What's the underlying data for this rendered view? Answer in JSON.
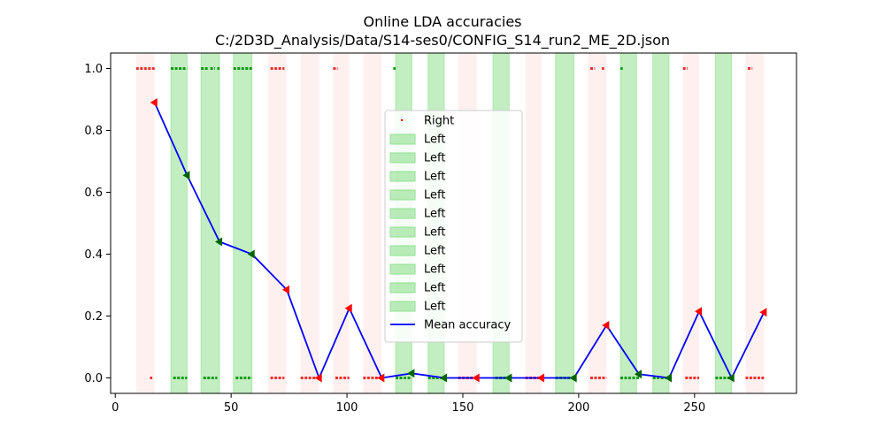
{
  "chart_data": {
    "type": "line",
    "title": "Online LDA accuracies",
    "subtitle": "C:/2D3D_Analysis/Data/S14-ses0/CONFIG_S14_run2_ME_2D.json",
    "xlabel": "",
    "ylabel": "",
    "xlim": [
      -2,
      294
    ],
    "ylim": [
      -0.05,
      1.05
    ],
    "xticks": [
      0,
      50,
      100,
      150,
      200,
      250
    ],
    "yticks": [
      0.0,
      0.2,
      0.4,
      0.6,
      0.8,
      1.0
    ],
    "grid": false,
    "legend_position": "center",
    "colors": {
      "right": "#ff0000",
      "left_marker": "#006400",
      "left_fill": "#90e090",
      "right_fill": "#ffdede",
      "line": "#0000ff",
      "pred_right": "#e83030",
      "pred_left": "#119911"
    },
    "trials": [
      {
        "start": 9,
        "end": 17,
        "class": "Right"
      },
      {
        "start": 24,
        "end": 31,
        "class": "Left"
      },
      {
        "start": 37,
        "end": 45,
        "class": "Left"
      },
      {
        "start": 51,
        "end": 59,
        "class": "Left"
      },
      {
        "start": 66,
        "end": 74,
        "class": "Right"
      },
      {
        "start": 80,
        "end": 88,
        "class": "Right"
      },
      {
        "start": 94,
        "end": 101,
        "class": "Right"
      },
      {
        "start": 107,
        "end": 115,
        "class": "Right"
      },
      {
        "start": 121,
        "end": 128,
        "class": "Left"
      },
      {
        "start": 135,
        "end": 142,
        "class": "Left"
      },
      {
        "start": 148,
        "end": 156,
        "class": "Right"
      },
      {
        "start": 163,
        "end": 170,
        "class": "Left"
      },
      {
        "start": 177,
        "end": 184,
        "class": "Right"
      },
      {
        "start": 190,
        "end": 198,
        "class": "Left"
      },
      {
        "start": 204,
        "end": 212,
        "class": "Right"
      },
      {
        "start": 218,
        "end": 225,
        "class": "Left"
      },
      {
        "start": 232,
        "end": 239,
        "class": "Left"
      },
      {
        "start": 245,
        "end": 252,
        "class": "Right"
      },
      {
        "start": 259,
        "end": 266,
        "class": "Left"
      },
      {
        "start": 272,
        "end": 280,
        "class": "Right"
      }
    ],
    "predictions": {
      "right_at_1": [
        [
          9,
          17
        ],
        [
          67,
          73
        ],
        [
          94,
          96
        ],
        [
          205,
          207
        ],
        [
          210,
          211
        ],
        [
          245,
          247
        ],
        [
          273,
          275
        ]
      ],
      "right_at_0": [
        [
          15,
          16
        ],
        [
          67,
          73
        ],
        [
          80,
          88
        ],
        [
          95,
          101
        ],
        [
          107,
          115
        ],
        [
          148,
          156
        ],
        [
          177,
          184
        ],
        [
          205,
          212
        ],
        [
          246,
          252
        ],
        [
          272,
          280
        ]
      ],
      "left_at_1": [
        [
          24,
          31
        ],
        [
          37,
          40
        ],
        [
          41,
          43
        ],
        [
          44,
          45
        ],
        [
          51,
          59
        ],
        [
          120,
          121
        ],
        [
          218,
          219
        ]
      ],
      "left_at_0": [
        [
          25,
          31
        ],
        [
          38,
          44
        ],
        [
          52,
          59
        ],
        [
          121,
          128
        ],
        [
          135,
          142
        ],
        [
          164,
          170
        ],
        [
          190,
          198
        ],
        [
          218,
          226
        ],
        [
          232,
          239
        ],
        [
          259,
          266
        ]
      ]
    },
    "series": [
      {
        "name": "Mean accuracy",
        "x": [
          17,
          31,
          45,
          59,
          74,
          88,
          101,
          115,
          128,
          142,
          156,
          170,
          184,
          198,
          212,
          226,
          239,
          252,
          266,
          280
        ],
        "y": [
          0.89,
          0.655,
          0.44,
          0.4,
          0.285,
          0.0,
          0.225,
          0.0,
          0.015,
          0.0,
          0.0,
          0.0,
          0.0,
          0.0,
          0.17,
          0.012,
          0.0,
          0.215,
          0.0,
          0.212
        ],
        "classes": [
          "Right",
          "Left",
          "Left",
          "Left",
          "Right",
          "Right",
          "Right",
          "Right",
          "Left",
          "Left",
          "Right",
          "Left",
          "Right",
          "Left",
          "Right",
          "Left",
          "Left",
          "Right",
          "Left",
          "Right"
        ]
      }
    ],
    "legend": [
      {
        "label": "Right",
        "kind": "point"
      },
      {
        "label": "Left",
        "kind": "fill"
      },
      {
        "label": "Left",
        "kind": "fill"
      },
      {
        "label": "Left",
        "kind": "fill"
      },
      {
        "label": "Left",
        "kind": "fill"
      },
      {
        "label": "Left",
        "kind": "fill"
      },
      {
        "label": "Left",
        "kind": "fill"
      },
      {
        "label": "Left",
        "kind": "fill"
      },
      {
        "label": "Left",
        "kind": "fill"
      },
      {
        "label": "Left",
        "kind": "fill"
      },
      {
        "label": "Left",
        "kind": "fill"
      },
      {
        "label": "Mean accuracy",
        "kind": "line"
      }
    ]
  }
}
